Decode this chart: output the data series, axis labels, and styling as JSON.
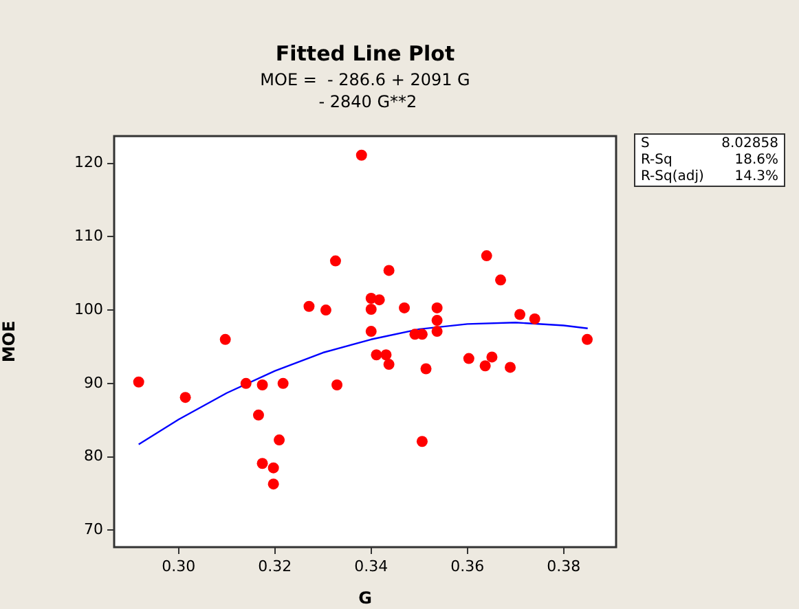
{
  "chart_data": {
    "type": "scatter",
    "title": "Fitted Line Plot",
    "subtitle": "MOE =  - 286.6 + 2091 G\n - 2840 G**2",
    "xlabel": "G",
    "ylabel": "MOE",
    "xlim": [
      0.2866,
      0.3909
    ],
    "ylim": [
      67.7,
      123.7
    ],
    "xticks": [
      {
        "value": 0.3,
        "label": "0.30"
      },
      {
        "value": 0.32,
        "label": "0.32"
      },
      {
        "value": 0.34,
        "label": "0.34"
      },
      {
        "value": 0.36,
        "label": "0.36"
      },
      {
        "value": 0.38,
        "label": "0.38"
      }
    ],
    "yticks": [
      70,
      80,
      90,
      100,
      110,
      120
    ],
    "grid": false,
    "legend": false,
    "marker": "circle",
    "series": [
      {
        "color": "#ff0000",
        "x": [
          0.2917,
          0.3014,
          0.3097,
          0.314,
          0.3174,
          0.3166,
          0.3174,
          0.3197,
          0.3197,
          0.3209,
          0.3217,
          0.3271,
          0.3306,
          0.3326,
          0.3329,
          0.338,
          0.34,
          0.34,
          0.34,
          0.3417,
          0.3411,
          0.3431,
          0.3437,
          0.3437,
          0.3469,
          0.3491,
          0.3506,
          0.3506,
          0.3514,
          0.3537,
          0.3537,
          0.3537,
          0.3603,
          0.3637,
          0.364,
          0.3651,
          0.3669,
          0.3689,
          0.3709,
          0.374,
          0.3849
        ],
        "values": [
          90.2,
          88.1,
          96.0,
          90.0,
          89.8,
          85.7,
          79.1,
          78.5,
          76.3,
          82.3,
          90.0,
          100.5,
          100.0,
          106.7,
          89.8,
          121.1,
          101.6,
          100.1,
          97.1,
          101.4,
          93.9,
          93.9,
          92.6,
          105.4,
          100.3,
          96.7,
          96.7,
          82.1,
          92.0,
          100.3,
          98.6,
          97.1,
          93.4,
          92.4,
          107.4,
          93.6,
          104.1,
          92.2,
          99.4,
          98.8,
          96.0
        ]
      },
      {
        "type": "line",
        "color": "#0000ff",
        "marker": "none",
        "line_style": "solid",
        "x": [
          0.2917,
          0.3,
          0.31,
          0.32,
          0.33,
          0.34,
          0.35,
          0.36,
          0.37,
          0.38,
          0.385
        ],
        "values": [
          81.7,
          85.1,
          88.7,
          91.7,
          94.2,
          96.0,
          97.4,
          98.1,
          98.3,
          97.9,
          97.5
        ]
      }
    ],
    "annotations": [
      "S",
      "8.02858",
      "R-Sq",
      "18.6%",
      "R-Sq(adj)",
      "14.3%"
    ]
  }
}
